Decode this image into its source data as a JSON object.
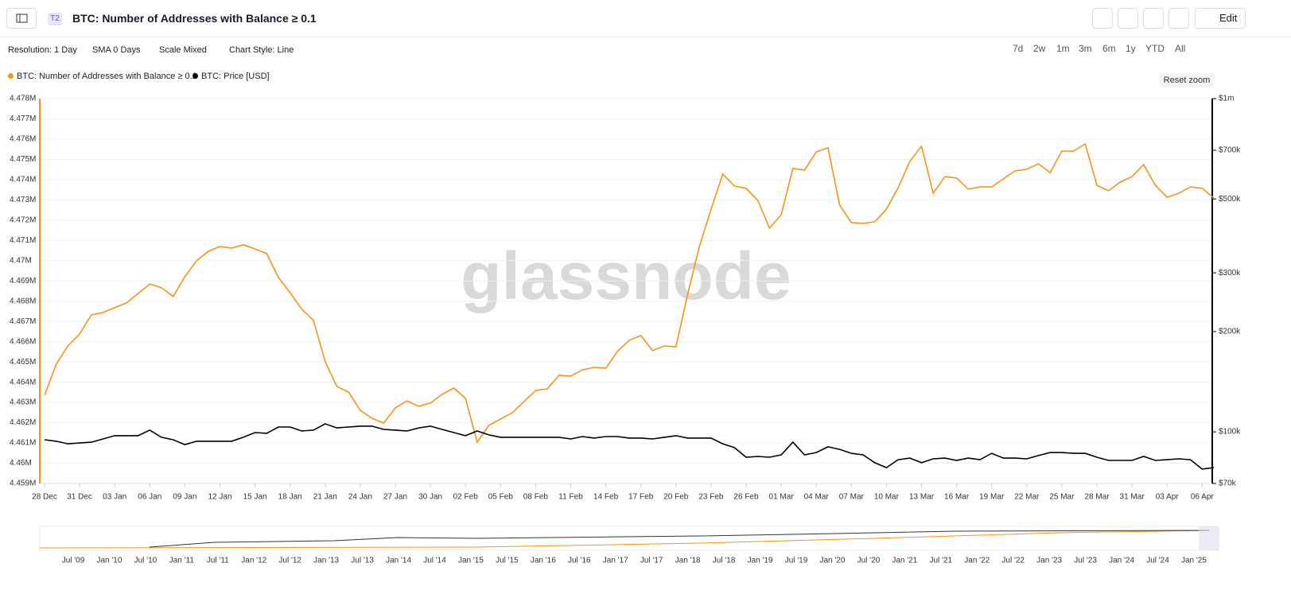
{
  "header": {
    "badge": "T2",
    "title": "BTC: Number of Addresses with Balance ≥ 0.1",
    "edit": "Edit"
  },
  "toolbar": {
    "controls": [
      "Resolution: 1 Day",
      "SMA 0 Days",
      "Scale Mixed",
      "Chart Style: Line"
    ],
    "ranges": [
      "7d",
      "2w",
      "1m",
      "3m",
      "6m",
      "1y",
      "YTD",
      "All"
    ],
    "reset": "Reset zoom"
  },
  "watermark": "glassnode",
  "chart_data": {
    "type": "line",
    "categories": [
      "28 Dec",
      null,
      null,
      "31 Dec",
      null,
      null,
      "03 Jan",
      null,
      null,
      "06 Jan",
      null,
      null,
      "09 Jan",
      null,
      null,
      "12 Jan",
      null,
      null,
      "15 Jan",
      null,
      null,
      "18 Jan",
      null,
      null,
      "21 Jan",
      null,
      null,
      "24 Jan",
      null,
      null,
      "27 Jan",
      null,
      null,
      "30 Jan",
      null,
      null,
      "02 Feb",
      null,
      null,
      "05 Feb",
      null,
      null,
      "08 Feb",
      null,
      null,
      "11 Feb",
      null,
      null,
      "14 Feb",
      null,
      null,
      "17 Feb",
      null,
      null,
      "20 Feb",
      null,
      null,
      "23 Feb",
      null,
      null,
      "26 Feb",
      null,
      null,
      "01 Mar",
      null,
      null,
      "04 Mar",
      null,
      null,
      "07 Mar",
      null,
      null,
      "10 Mar",
      null,
      null,
      "13 Mar",
      null,
      null,
      "16 Mar",
      null,
      null,
      "19 Mar",
      null,
      null,
      "22 Mar",
      null,
      null,
      "25 Mar",
      null,
      null,
      "28 Mar",
      null,
      null,
      "31 Mar",
      null,
      null,
      "03 Apr",
      null,
      null,
      "06 Apr",
      null
    ],
    "series": [
      {
        "name": "BTC: Number of Addresses with Balance ≥ 0.1",
        "color": "#f7931a",
        "values": [
          4463360,
          4464890,
          4465790,
          4466380,
          4467320,
          4467440,
          4467680,
          4467910,
          4468380,
          4468850,
          4468660,
          4468230,
          4469210,
          4469990,
          4470460,
          4470700,
          4470620,
          4470780,
          4470580,
          4470350,
          4469170,
          4468420,
          4467600,
          4467050,
          4465010,
          4463790,
          4463510,
          4462610,
          4462220,
          4461980,
          4462730,
          4463080,
          4462810,
          4462970,
          4463400,
          4463710,
          4463200,
          4461040,
          4461870,
          4462180,
          4462490,
          4463040,
          4463590,
          4463670,
          4464340,
          4464300,
          4464610,
          4464730,
          4464690,
          4465520,
          4466070,
          4466300,
          4465560,
          4465790,
          4465750,
          4468340,
          4470700,
          4472540,
          4474270,
          4473680,
          4473570,
          4472980,
          4471600,
          4472270,
          4474550,
          4474470,
          4475370,
          4475570,
          4472740,
          4471880,
          4471840,
          4471920,
          4472540,
          4473600,
          4474900,
          4475650,
          4473330,
          4474150,
          4474080,
          4473530,
          4473640,
          4473640,
          4474040,
          4474430,
          4474510,
          4474780,
          4474350,
          4475410,
          4475410,
          4475760,
          4473720,
          4473450,
          4473880,
          4474150,
          4474740,
          4473720,
          4473130,
          4473330,
          4473640,
          4473570,
          4473090
        ]
      },
      {
        "name": "BTC: Price [USD]",
        "color": "#000000",
        "axis": "y2",
        "values": [
          94700,
          93700,
          92100,
          92600,
          93100,
          95200,
          97400,
          97400,
          97400,
          101200,
          96300,
          94700,
          91600,
          93700,
          93700,
          93700,
          93700,
          96300,
          99500,
          99000,
          103400,
          103400,
          100600,
          101200,
          105700,
          102800,
          103400,
          104000,
          104000,
          101700,
          101200,
          100600,
          102800,
          104000,
          101700,
          99500,
          97400,
          100600,
          97900,
          96300,
          96300,
          96300,
          96300,
          96300,
          96300,
          95200,
          96800,
          95800,
          96800,
          96800,
          95800,
          95800,
          95200,
          96300,
          97400,
          95800,
          95800,
          95800,
          92100,
          89700,
          83900,
          84400,
          83900,
          85300,
          93100,
          85300,
          86700,
          90200,
          88600,
          86200,
          85300,
          80800,
          78100,
          82500,
          83400,
          80800,
          83000,
          83400,
          82100,
          83400,
          82500,
          86200,
          83400,
          83400,
          83000,
          84900,
          86700,
          86700,
          86200,
          86200,
          83900,
          82100,
          82100,
          82100,
          84400,
          82100,
          82500,
          83000,
          82500,
          77300,
          78100
        ]
      }
    ],
    "ylim": [
      4459000,
      4478000
    ],
    "yticks": [
      {
        "value": 4459000,
        "label": "4.459M"
      },
      {
        "value": 4460000,
        "label": "4.46M"
      },
      {
        "value": 4461000,
        "label": "4.461M"
      },
      {
        "value": 4462000,
        "label": "4.462M"
      },
      {
        "value": 4463000,
        "label": "4.463M"
      },
      {
        "value": 4464000,
        "label": "4.464M"
      },
      {
        "value": 4465000,
        "label": "4.465M"
      },
      {
        "value": 4466000,
        "label": "4.466M"
      },
      {
        "value": 4467000,
        "label": "4.467M"
      },
      {
        "value": 4468000,
        "label": "4.468M"
      },
      {
        "value": 4469000,
        "label": "4.469M"
      },
      {
        "value": 4470000,
        "label": "4.47M"
      },
      {
        "value": 4471000,
        "label": "4.471M"
      },
      {
        "value": 4472000,
        "label": "4.472M"
      },
      {
        "value": 4473000,
        "label": "4.473M"
      },
      {
        "value": 4474000,
        "label": "4.474M"
      },
      {
        "value": 4475000,
        "label": "4.475M"
      },
      {
        "value": 4476000,
        "label": "4.476M"
      },
      {
        "value": 4477000,
        "label": "4.477M"
      },
      {
        "value": 4478000,
        "label": "4.478M"
      }
    ],
    "y2lim": [
      70000,
      1000000
    ],
    "y2log": true,
    "y2ticks": [
      {
        "value": 70000,
        "label": "$70k"
      },
      {
        "value": 100000,
        "label": "$100k"
      },
      {
        "value": 200000,
        "label": "$200k"
      },
      {
        "value": 300000,
        "label": "$300k"
      },
      {
        "value": 500000,
        "label": "$500k"
      },
      {
        "value": 700000,
        "label": "$700k"
      },
      {
        "value": 1000000,
        "label": "$1m"
      }
    ],
    "grid": true
  },
  "navigator": {
    "labels": [
      "Jul '09",
      "Jan '10",
      "Jul '10",
      "Jan '11",
      "Jul '11",
      "Jan '12",
      "Jul '12",
      "Jan '13",
      "Jul '13",
      "Jan '14",
      "Jul '14",
      "Jan '15",
      "Jul '15",
      "Jan '16",
      "Jul '16",
      "Jan '17",
      "Jul '17",
      "Jan '18",
      "Jul '18",
      "Jan '19",
      "Jul '19",
      "Jan '20",
      "Jul '20",
      "Jan '21",
      "Jul '21",
      "Jan '22",
      "Jul '22",
      "Jan '23",
      "Jul '23",
      "Jan '24",
      "Jul '24",
      "Jan '25"
    ]
  }
}
